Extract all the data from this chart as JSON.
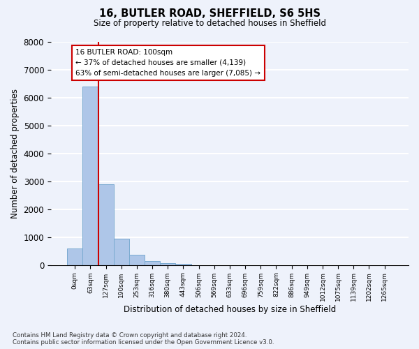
{
  "title1": "16, BUTLER ROAD, SHEFFIELD, S6 5HS",
  "title2": "Size of property relative to detached houses in Sheffield",
  "xlabel": "Distribution of detached houses by size in Sheffield",
  "ylabel": "Number of detached properties",
  "categories": [
    "0sqm",
    "63sqm",
    "127sqm",
    "190sqm",
    "253sqm",
    "316sqm",
    "380sqm",
    "443sqm",
    "506sqm",
    "569sqm",
    "633sqm",
    "696sqm",
    "759sqm",
    "822sqm",
    "886sqm",
    "949sqm",
    "1012sqm",
    "1075sqm",
    "1139sqm",
    "1202sqm",
    "1265sqm"
  ],
  "values": [
    600,
    6400,
    2900,
    950,
    370,
    150,
    75,
    50,
    0,
    0,
    0,
    0,
    0,
    0,
    0,
    0,
    0,
    0,
    0,
    0,
    0
  ],
  "bar_color": "#aec6e8",
  "bar_edge_color": "#7aaad0",
  "background_color": "#eef2fb",
  "grid_color": "#ffffff",
  "ylim": [
    0,
    8000
  ],
  "yticks": [
    0,
    1000,
    2000,
    3000,
    4000,
    5000,
    6000,
    7000,
    8000
  ],
  "property_line_color": "#cc0000",
  "annotation_text": "16 BUTLER ROAD: 100sqm\n← 37% of detached houses are smaller (4,139)\n63% of semi-detached houses are larger (7,085) →",
  "annotation_box_color": "#ffffff",
  "annotation_box_edge_color": "#cc0000",
  "footer1": "Contains HM Land Registry data © Crown copyright and database right 2024.",
  "footer2": "Contains public sector information licensed under the Open Government Licence v3.0."
}
